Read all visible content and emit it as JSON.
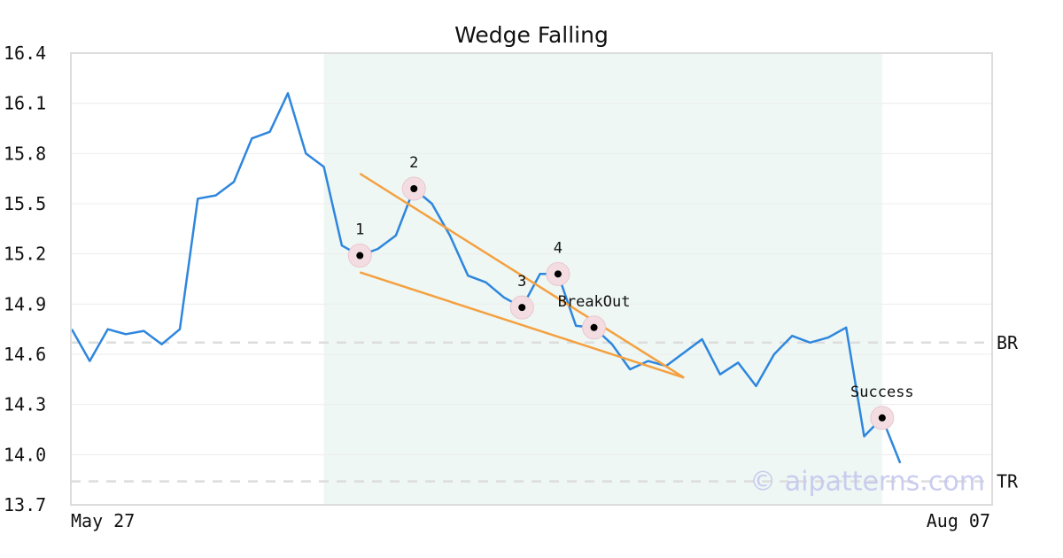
{
  "chart_data": {
    "type": "line",
    "title": "Wedge Falling",
    "xlabel": "",
    "ylabel": "",
    "ylim": [
      13.7,
      16.4
    ],
    "yticks": [
      "16.4",
      "16.1",
      "15.8",
      "15.5",
      "15.2",
      "14.9",
      "14.6",
      "14.3",
      "14.0",
      "13.7"
    ],
    "xticks": [
      "May 27",
      "Aug 07"
    ],
    "grid": true,
    "highlight_region": {
      "start_index": 14,
      "end_index": 45,
      "color": "#eef7f3"
    },
    "series": [
      {
        "color": "#2e86de",
        "values": [
          14.75,
          14.56,
          14.75,
          14.72,
          14.74,
          14.66,
          14.75,
          15.53,
          15.55,
          15.63,
          15.89,
          15.93,
          16.16,
          15.8,
          15.72,
          15.25,
          15.19,
          15.23,
          15.31,
          15.59,
          15.5,
          15.31,
          15.07,
          15.03,
          14.94,
          14.88,
          15.08,
          15.08,
          14.77,
          14.76,
          14.66,
          14.51,
          14.56,
          14.53,
          14.61,
          14.69,
          14.48,
          14.55,
          14.41,
          14.6,
          14.71,
          14.67,
          14.7,
          14.76,
          14.11,
          14.22,
          13.95
        ]
      }
    ],
    "trendlines": [
      {
        "color": "#f4a040",
        "from": {
          "x": 16,
          "y": 15.68
        },
        "to": {
          "x": 34,
          "y": 14.46
        }
      },
      {
        "color": "#f4a040",
        "from": {
          "x": 16,
          "y": 15.09
        },
        "to": {
          "x": 34,
          "y": 14.46
        }
      }
    ],
    "markers": [
      {
        "label": "1",
        "x": 16,
        "y": 15.19
      },
      {
        "label": "2",
        "x": 19,
        "y": 15.59
      },
      {
        "label": "3",
        "x": 25,
        "y": 14.88
      },
      {
        "label": "4",
        "x": 27,
        "y": 15.08
      },
      {
        "label": "BreakOut",
        "x": 29,
        "y": 14.76
      },
      {
        "label": "Success",
        "x": 45,
        "y": 14.22
      }
    ],
    "levels": [
      {
        "label": "BR",
        "value": 14.67
      },
      {
        "label": "TR",
        "value": 13.84
      }
    ],
    "watermark": "© aipatterns.com"
  }
}
